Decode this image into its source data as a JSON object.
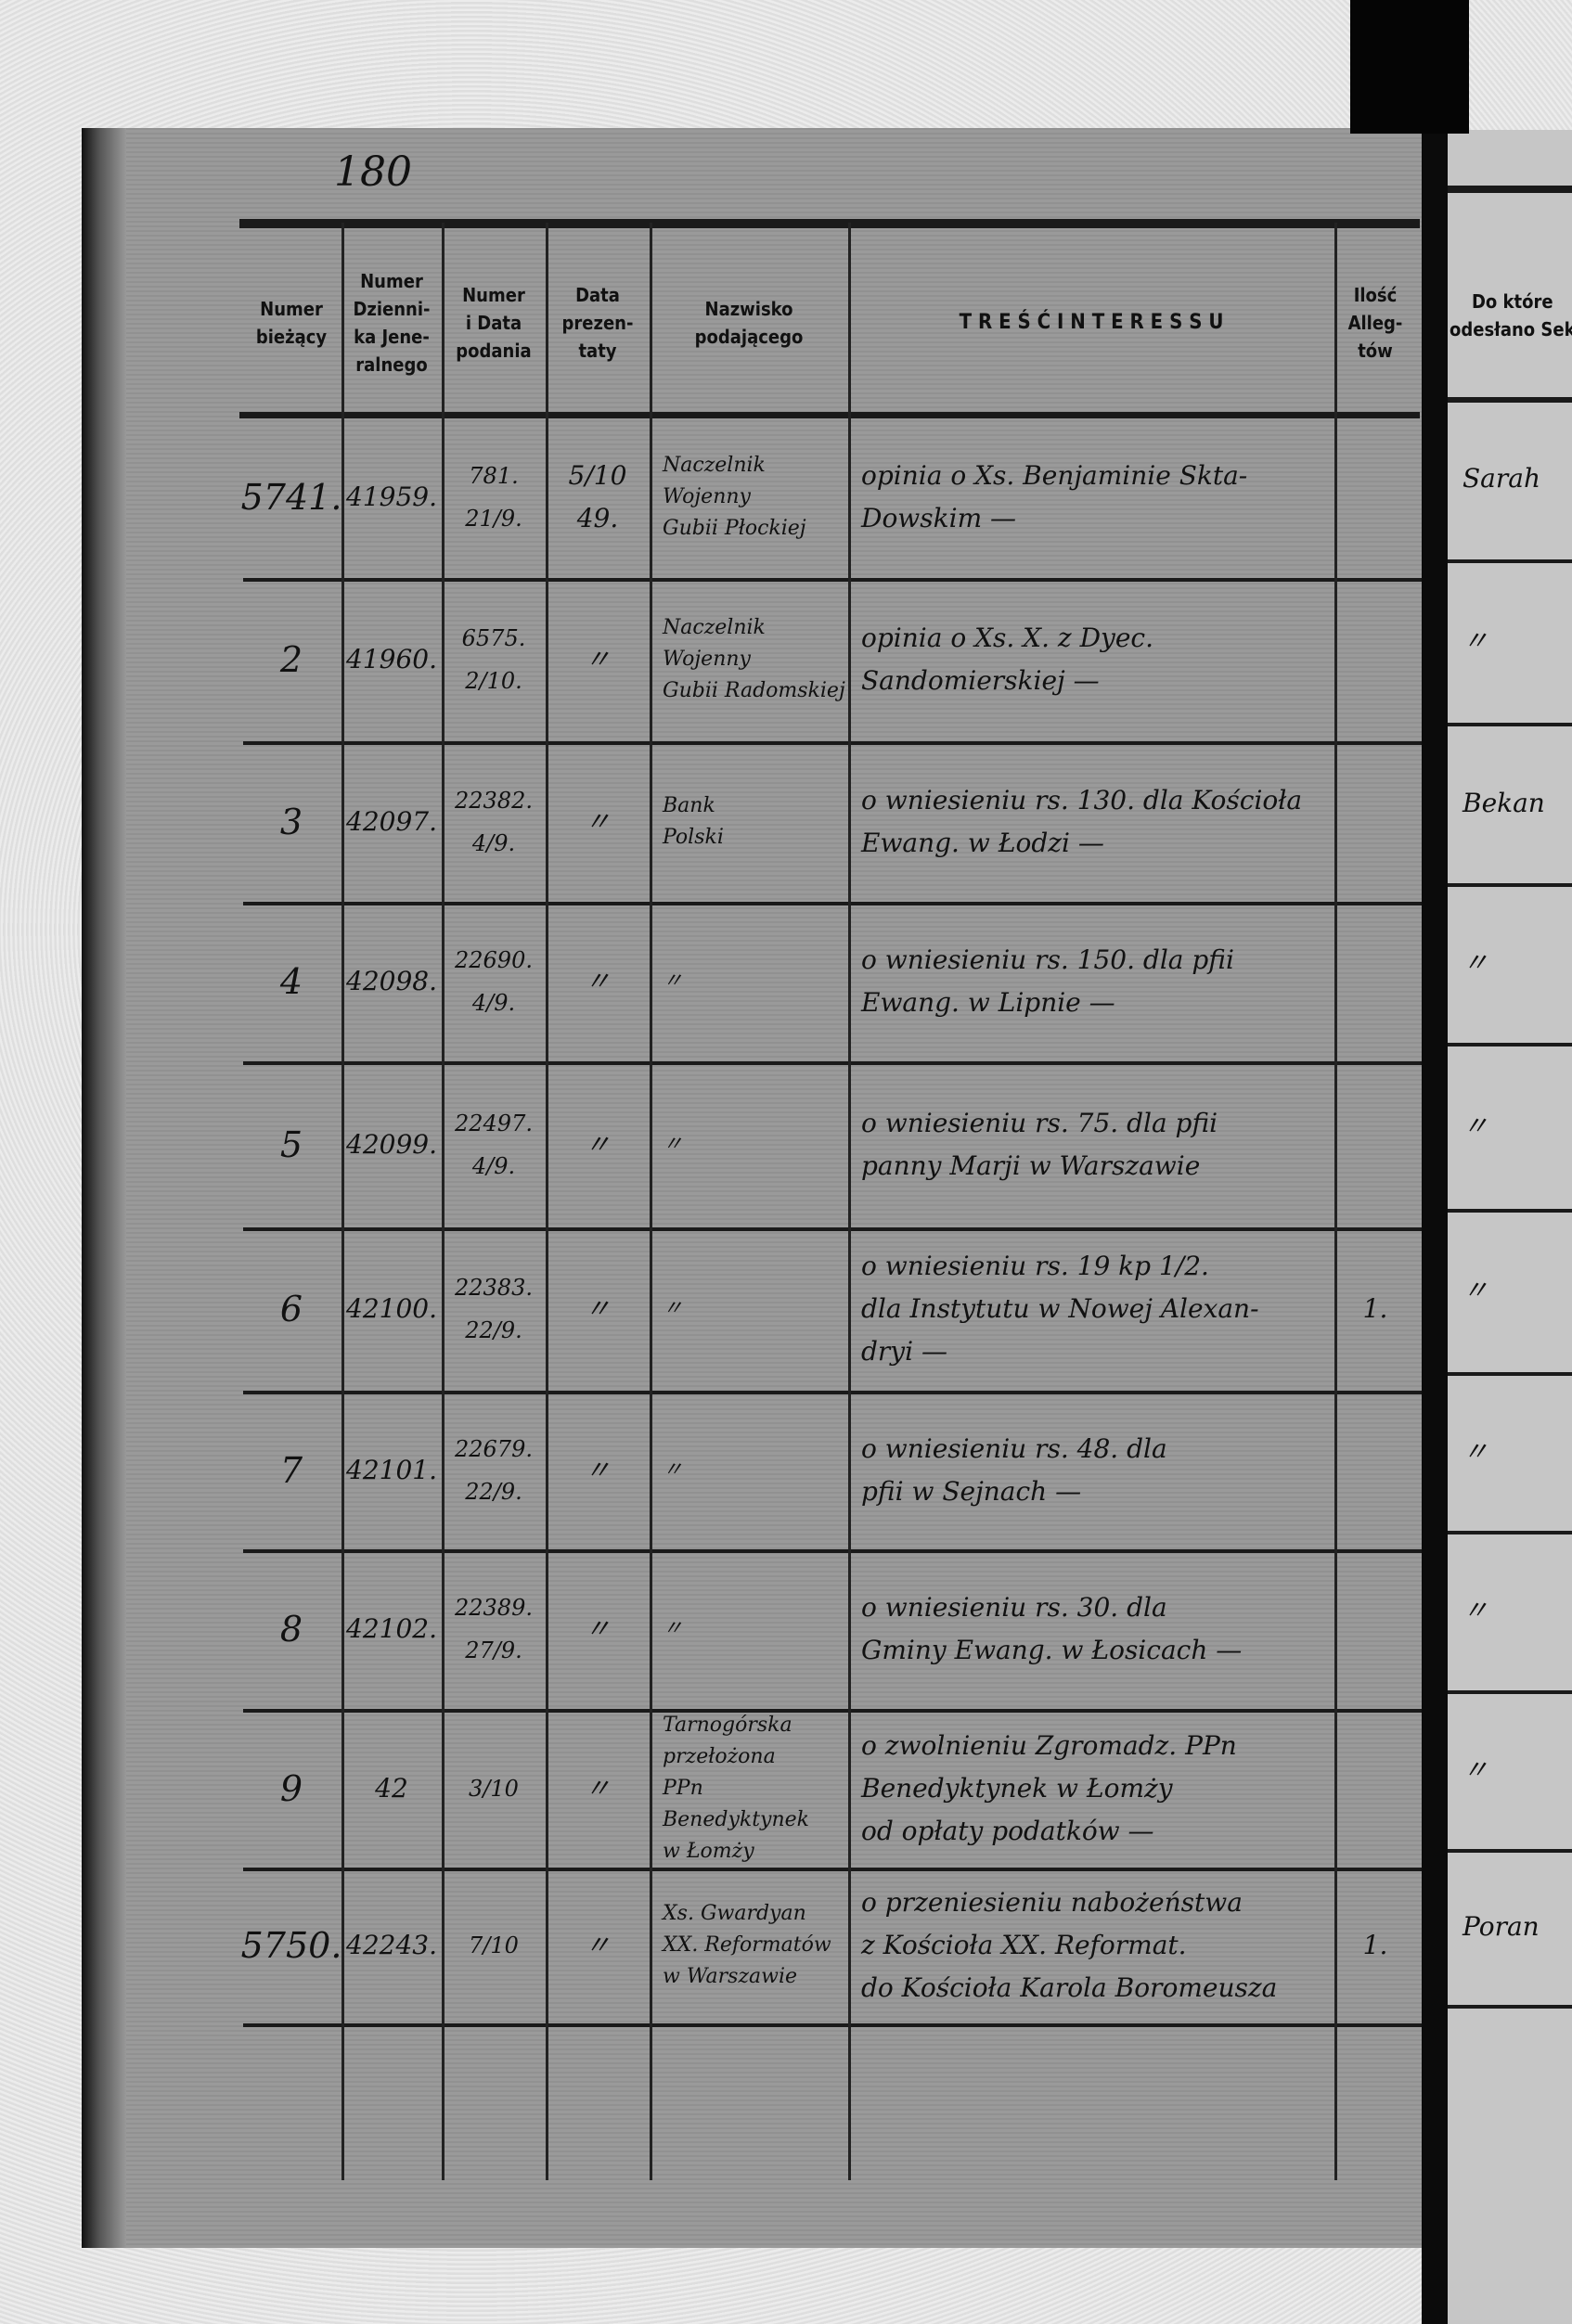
{
  "page_number": "180",
  "headers": {
    "numer": "Numer\nbieżący",
    "dziennik": "Numer\nDzienni-\nka Jene-\nralnego",
    "numer_data": "Numer\ni Data\npodania",
    "prezentaty": "Data\nprezen-\ntaty",
    "nazwisko": "Nazwisko\npodającego",
    "tresc": "T R E Ś Ć   I N T E R E S S U",
    "ilosc": "Ilość\nAlleg-\ntów",
    "odeslano": "Do które\nodesłano Sek"
  },
  "rows": [
    {
      "nr": "5741.",
      "dziennik": "41959.",
      "numer_data": "781.\n21/9.",
      "prezentaty": "5/10\n49.",
      "nazwisko": "Naczelnik\nWojenny\nGubii Płockiej",
      "tresc": "opinia o Xs. Benjaminie Skta-\nDowskim —",
      "ilosc": "",
      "odeslano": "Sarah"
    },
    {
      "nr": "2",
      "dziennik": "41960.",
      "numer_data": "6575.\n2/10.",
      "prezentaty": "〃",
      "nazwisko": "Naczelnik\nWojenny\nGubii Radomskiej",
      "tresc": "opinia o Xs. X. z Dyec.\nSandomierskiej —",
      "ilosc": "",
      "odeslano": "〃"
    },
    {
      "nr": "3",
      "dziennik": "42097.",
      "numer_data": "22382.\n4/9.",
      "prezentaty": "〃",
      "nazwisko": "Bank\nPolski",
      "tresc": "o wniesieniu rs. 130. dla Kościoła\nEwang. w Łodzi —",
      "ilosc": "",
      "odeslano": "Bekan"
    },
    {
      "nr": "4",
      "dziennik": "42098.",
      "numer_data": "22690.\n4/9.",
      "prezentaty": "〃",
      "nazwisko": "〃",
      "tresc": "o wniesieniu rs. 150. dla pfii\nEwang. w Lipnie —",
      "ilosc": "",
      "odeslano": "〃"
    },
    {
      "nr": "5",
      "dziennik": "42099.",
      "numer_data": "22497.\n4/9.",
      "prezentaty": "〃",
      "nazwisko": "〃",
      "tresc": "o wniesieniu rs. 75. dla pfii\npanny Marji w Warszawie",
      "ilosc": "",
      "odeslano": "〃"
    },
    {
      "nr": "6",
      "dziennik": "42100.",
      "numer_data": "22383.\n22/9.",
      "prezentaty": "〃",
      "nazwisko": "〃",
      "tresc": "o wniesieniu rs. 19 kp 1/2.\ndla Instytutu w Nowej Alexan-\ndryi —",
      "ilosc": "1.",
      "odeslano": "〃"
    },
    {
      "nr": "7",
      "dziennik": "42101.",
      "numer_data": "22679.\n22/9.",
      "prezentaty": "〃",
      "nazwisko": "〃",
      "tresc": "o wniesieniu rs. 48. dla\npfii w Sejnach —",
      "ilosc": "",
      "odeslano": "〃"
    },
    {
      "nr": "8",
      "dziennik": "42102.",
      "numer_data": "22389.\n27/9.",
      "prezentaty": "〃",
      "nazwisko": "〃",
      "tresc": "o wniesieniu rs. 30. dla\nGminy Ewang. w Łosicach —",
      "ilosc": "",
      "odeslano": "〃"
    },
    {
      "nr": "9",
      "dziennik": "42",
      "numer_data": "3/10",
      "prezentaty": "〃",
      "nazwisko": "Tarnogórska\nprzełożona\nPPn Benedyktynek\nw Łomży",
      "tresc": "o zwolnieniu Zgromadz. PPn\nBenedyktynek w Łomży\nod opłaty podatków —",
      "ilosc": "",
      "odeslano": "〃"
    },
    {
      "nr": "5750.",
      "dziennik": "42243.",
      "numer_data": "7/10",
      "prezentaty": "〃",
      "nazwisko": "Xs. Gwardyan\nXX. Reformatów\nw Warszawie",
      "tresc": "o przeniesieniu nabożeństwa\nz Kościoła XX. Reformat.\ndo Kościoła Karola Boromeusza",
      "ilosc": "1.",
      "odeslano": "Poran"
    }
  ]
}
